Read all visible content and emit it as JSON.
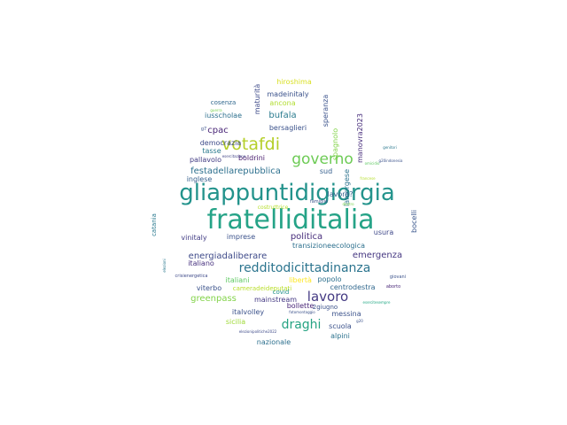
{
  "words": [
    {
      "text": "fratelliditalia",
      "color": "#25a387"
    },
    {
      "text": "gliappuntidigiorgia",
      "color": "#23938c"
    },
    {
      "text": "votafdi",
      "color": "#b5cf29"
    },
    {
      "text": "governo",
      "color": "#6dcb55"
    },
    {
      "text": "redditodicittadinanza",
      "color": "#2b748e"
    },
    {
      "text": "lavoro",
      "color": "#443a83"
    },
    {
      "text": "draghi",
      "color": "#26a383"
    },
    {
      "text": "festadellarepubblica",
      "color": "#2d708e"
    },
    {
      "text": "energiadaliberare",
      "color": "#3e4a89"
    },
    {
      "text": "emergenza",
      "color": "#453781"
    },
    {
      "text": "politica",
      "color": "#472d7b"
    },
    {
      "text": "greenpass",
      "color": "#83d34a"
    },
    {
      "text": "cpac",
      "color": "#482576"
    },
    {
      "text": "bufala",
      "color": "#2a7b8e"
    },
    {
      "text": "hiroshima",
      "color": "#d9e023"
    },
    {
      "text": "madeinitaly",
      "color": "#3b528b"
    },
    {
      "text": "ancona",
      "color": "#b1dd2f"
    },
    {
      "text": "iusscholae",
      "color": "#2d708e"
    },
    {
      "text": "bersaglieri",
      "color": "#3b528b"
    },
    {
      "text": "cosenza",
      "color": "#31688e"
    },
    {
      "text": "maturità",
      "color": "#3e4a89"
    },
    {
      "text": "speranza",
      "color": "#3b528b"
    },
    {
      "text": "manovra2023",
      "color": "#472d7b"
    },
    {
      "text": "spagnolo",
      "color": "#84d44b"
    },
    {
      "text": "lamorgese",
      "color": "#2c728e"
    },
    {
      "text": "lavoro?",
      "color": "#35608d"
    },
    {
      "text": "democrazia",
      "color": "#3e4a89"
    },
    {
      "text": "tasse",
      "color": "#29798e"
    },
    {
      "text": "pallavolo",
      "color": "#433d84"
    },
    {
      "text": "boldrini",
      "color": "#481b6d"
    },
    {
      "text": "inglese",
      "color": "#35608d"
    },
    {
      "text": "sud",
      "color": "#355f8d"
    },
    {
      "text": "imprese",
      "color": "#3b528b"
    },
    {
      "text": "vinitaly",
      "color": "#433e85"
    },
    {
      "text": "transizioneecologica",
      "color": "#2d708e"
    },
    {
      "text": "usura",
      "color": "#3f4889"
    },
    {
      "text": "bocelli",
      "color": "#39568c"
    },
    {
      "text": "catania",
      "color": "#29798e"
    },
    {
      "text": "italiano",
      "color": "#46307e"
    },
    {
      "text": "italiani",
      "color": "#5ec962"
    },
    {
      "text": "libertà",
      "color": "#fde725"
    },
    {
      "text": "viterbo",
      "color": "#3b528b"
    },
    {
      "text": "cameradeideputati",
      "color": "#b8de29"
    },
    {
      "text": "centrodestra",
      "color": "#31688e"
    },
    {
      "text": "popolo",
      "color": "#2d708e"
    },
    {
      "text": "mainstream",
      "color": "#443983"
    },
    {
      "text": "bollette",
      "color": "#482677"
    },
    {
      "text": "messina",
      "color": "#3b528b"
    },
    {
      "text": "italvolley",
      "color": "#3b528b"
    },
    {
      "text": "sicilia",
      "color": "#a0da39"
    },
    {
      "text": "scuola",
      "color": "#3b528b"
    },
    {
      "text": "alpini",
      "color": "#2c728e"
    },
    {
      "text": "nazionale",
      "color": "#2d708e"
    },
    {
      "text": "2giugno",
      "color": "#3b528b"
    },
    {
      "text": "covid",
      "color": "#21918c"
    },
    {
      "text": "famiglie",
      "color": "#3b528b"
    },
    {
      "text": "costruttrice",
      "color": "#b5de2b"
    },
    {
      "text": "guerra",
      "color": "#7ad151"
    },
    {
      "text": "g7",
      "color": "#3b528b"
    },
    {
      "text": "esercitazione",
      "color": "#414487"
    },
    {
      "text": "omicidio",
      "color": "#5ec962"
    },
    {
      "text": "genitori",
      "color": "#2a788e"
    },
    {
      "text": "g20indonesia",
      "color": "#3b528b"
    },
    {
      "text": "dentro",
      "color": "#7ad151"
    },
    {
      "text": "francese",
      "color": "#b5de2b"
    },
    {
      "text": "crisienergetica",
      "color": "#3e4a89"
    },
    {
      "text": "giovani",
      "color": "#3b528b"
    },
    {
      "text": "aborto",
      "color": "#482677"
    },
    {
      "text": "elezioni",
      "color": "#2a788e"
    },
    {
      "text": "fotomontaggio",
      "color": "#3b528b"
    },
    {
      "text": "esercitesempre",
      "color": "#22a884"
    },
    {
      "text": "g20",
      "color": "#3b528b"
    },
    {
      "text": "elezionipolitiche2022",
      "color": "#3e4a89"
    }
  ]
}
